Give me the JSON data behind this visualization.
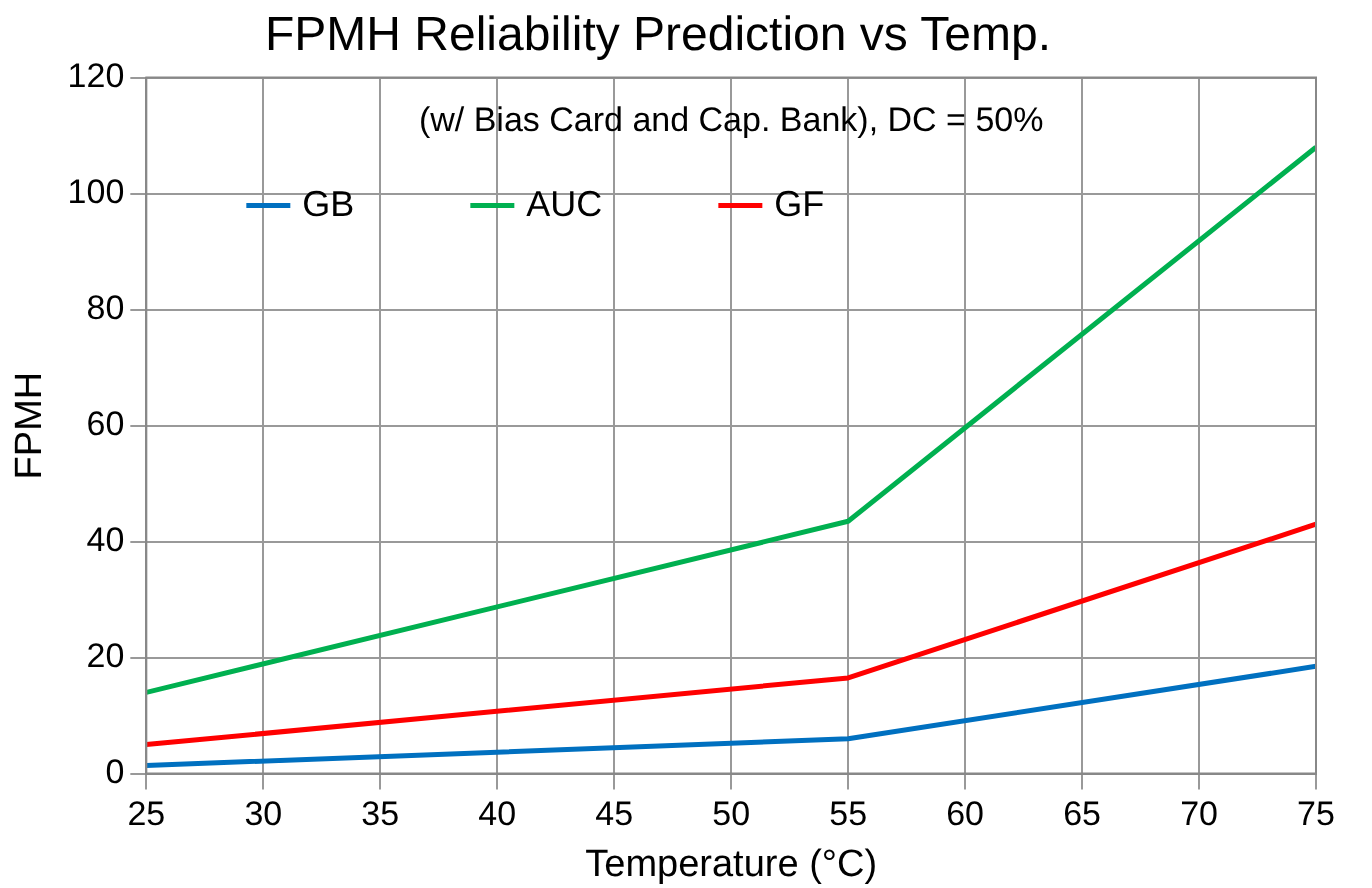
{
  "chart_data": {
    "type": "line",
    "title": "FPMH Reliability Prediction vs Temp.",
    "subtitle": "(w/ Bias Card and Cap. Bank), DC = 50%",
    "xlabel": "Temperature (°C)",
    "ylabel": "FPMH",
    "x": [
      25,
      55,
      75
    ],
    "series": [
      {
        "name": "GB",
        "color": "#0070c0",
        "values": [
          1.4,
          6,
          18.5
        ]
      },
      {
        "name": "AUC",
        "color": "#00b050",
        "values": [
          14,
          43.5,
          108
        ]
      },
      {
        "name": "GF",
        "color": "#ff0000",
        "values": [
          5,
          16.5,
          43
        ]
      }
    ],
    "xlim": [
      25,
      75
    ],
    "xticks": [
      25,
      30,
      35,
      40,
      45,
      50,
      55,
      60,
      65,
      70,
      75
    ],
    "ylim": [
      0,
      120
    ],
    "yticks": [
      0,
      20,
      40,
      60,
      80,
      100,
      120
    ],
    "grid": true,
    "legend": "top left",
    "marker": "none",
    "line_style": "solid"
  }
}
